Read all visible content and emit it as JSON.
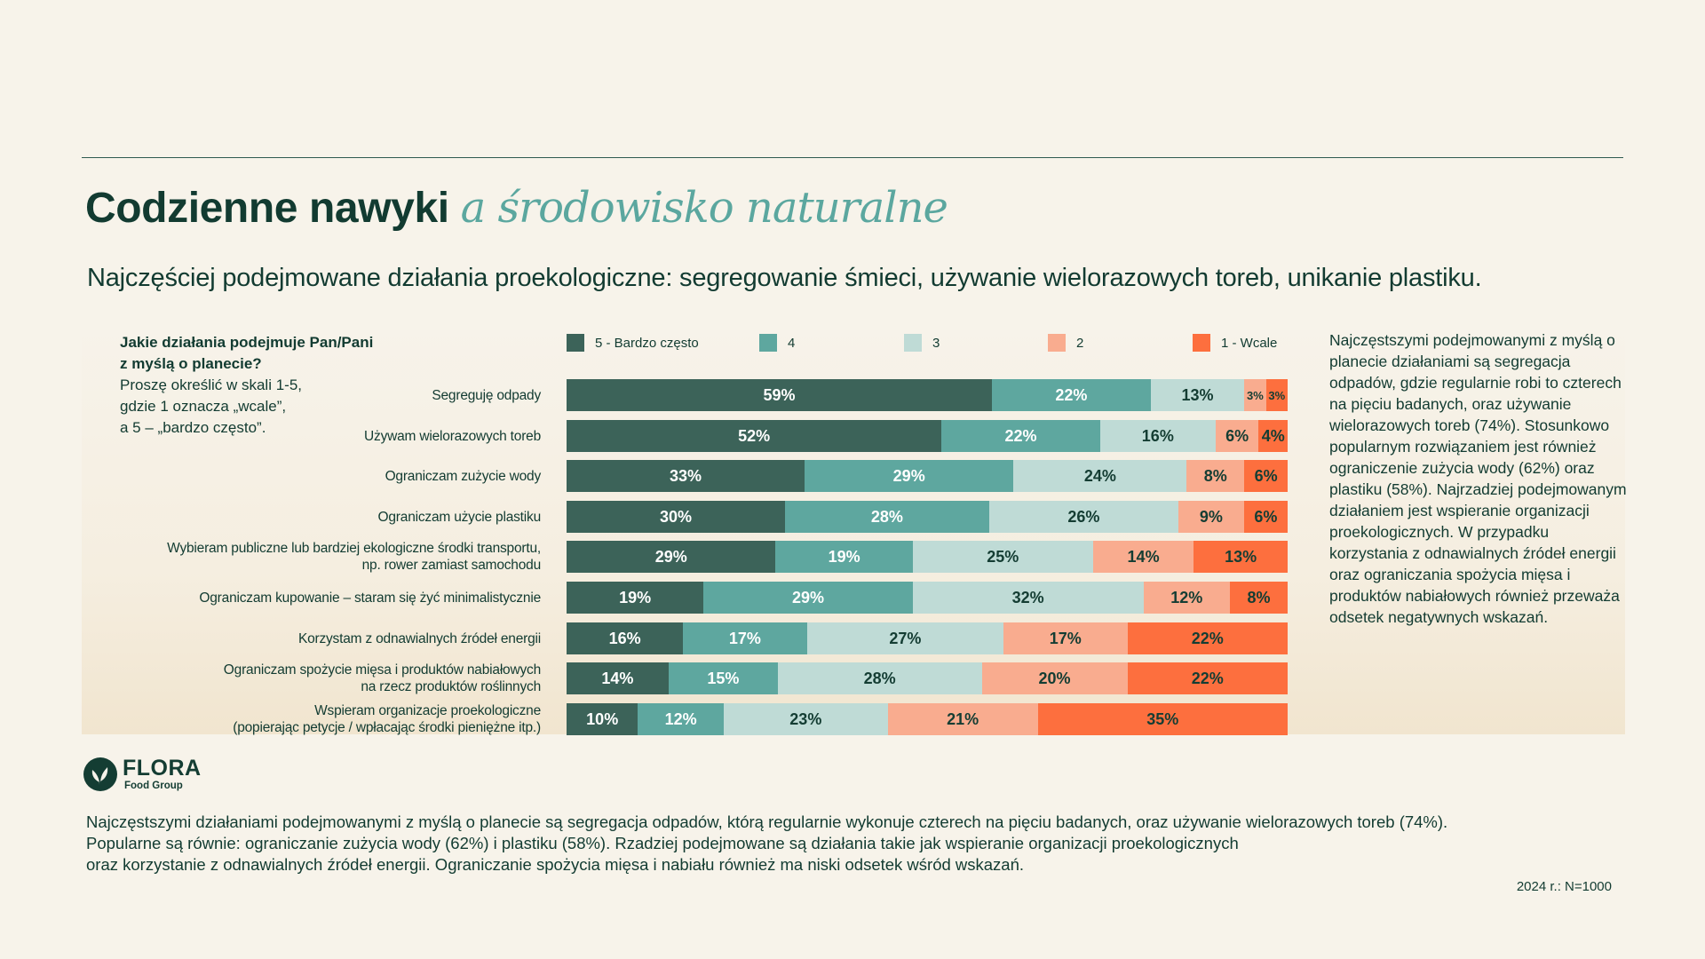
{
  "title": {
    "main": "Codzienne nawyki",
    "accent": "a środowisko naturalne"
  },
  "subtitle": "Najczęściej podejmowane działania proekologiczne: segregowanie śmieci, używanie wielorazowych toreb, unikanie plastiku.",
  "question": {
    "bold_line1": "Jakie działania podejmuje Pan/Pani",
    "bold_line2": "z myślą o planecie?",
    "line3": "Proszę określić w skali 1-5,",
    "line4": "gdzie 1 oznacza „wcale”,",
    "line5": "a 5 – „bardzo często”."
  },
  "colors": {
    "c5": "#3c6359",
    "c4": "#5ea79f",
    "c3": "#bfdbd6",
    "c2": "#f9ac8f",
    "c1": "#fd6f3e",
    "dark_text": "#143d33",
    "light_text": "#ffffff"
  },
  "chart_data": {
    "type": "bar",
    "orientation": "horizontal",
    "stacked": true,
    "normalized": true,
    "value_format": "percent",
    "title": "Najczęściej podejmowane działania proekologiczne",
    "xlabel": "",
    "ylabel": "",
    "xlim": [
      0,
      100
    ],
    "legend_position": "top",
    "categories": [
      "Segreguję odpady",
      "Używam wielorazowych toreb",
      "Ograniczam zużycie wody",
      "Ograniczam użycie plastiku",
      "Wybieram publiczne lub bardziej ekologiczne środki transportu,\nnp. rower zamiast samochodu",
      "Ograniczam kupowanie – staram się żyć minimalistycznie",
      "Korzystam z odnawialnych źródeł energii",
      "Ograniczam spożycie mięsa i produktów nabiałowych\nna rzecz produktów roślinnych",
      "Wspieram organizacje proekologiczne\n(popierając petycje / wpłacając środki pieniężne itp.)"
    ],
    "series": [
      {
        "name": "5 - Bardzo często",
        "color_key": "c5",
        "values": [
          59,
          52,
          33,
          30,
          29,
          19,
          16,
          14,
          10
        ]
      },
      {
        "name": "4",
        "color_key": "c4",
        "values": [
          22,
          22,
          29,
          28,
          19,
          29,
          17,
          15,
          12
        ]
      },
      {
        "name": "3",
        "color_key": "c3",
        "values": [
          13,
          16,
          24,
          26,
          25,
          32,
          27,
          28,
          23
        ]
      },
      {
        "name": "2",
        "color_key": "c2",
        "values": [
          3,
          6,
          8,
          9,
          14,
          12,
          17,
          20,
          21
        ]
      },
      {
        "name": "1 - Wcale",
        "color_key": "c1",
        "values": [
          3,
          4,
          6,
          6,
          13,
          8,
          22,
          22,
          35
        ]
      }
    ]
  },
  "side_text": "Najczęstszymi podejmowanymi z myślą o planecie działaniami są segregacja odpadów, gdzie regularnie robi to czterech na pięciu badanych, oraz używanie wielorazowych toreb (74%). Stosunkowo popularnym rozwiązaniem jest również ograniczenie zużycia wody (62%) oraz plastiku (58%). Najrzadziej podejmowanym działaniem jest wspieranie organizacji proekologicznych. W przypadku korzystania z odnawialnych źródeł energii oraz ograniczania spożycia mięsa i produktów nabiałowych również przeważa odsetek negatywnych wskazań.",
  "logo": {
    "name": "FLORA",
    "sub": "Food Group"
  },
  "footer": {
    "line1": "Najczęstszymi działaniami podejmowanymi z myślą o planecie są segregacja odpadów, którą regularnie wykonuje czterech na pięciu badanych, oraz używanie wielorazowych toreb (74%).",
    "line2": "Popularne są równie: ograniczanie zużycia wody (62%) i plastiku (58%). Rzadziej podejmowane są działania takie jak wspieranie organizacji proekologicznych",
    "line3": "oraz korzystanie z odnawialnych źródeł energii. Ograniczanie spożycia mięsa i nabiału również ma niski odsetek wśród wskazań."
  },
  "sample_note": "2024 r.: N=1000"
}
